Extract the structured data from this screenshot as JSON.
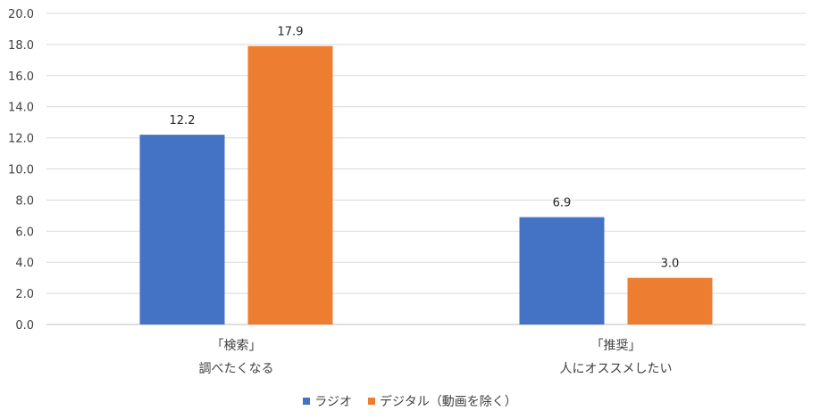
{
  "chart_data": {
    "type": "bar",
    "categories": [
      [
        "「検索」",
        "調べたくなる"
      ],
      [
        "「推奨」",
        "人にオススメしたい"
      ]
    ],
    "series": [
      {
        "name": "ラジオ",
        "values": [
          12.2,
          6.9
        ],
        "color": "#4472C4"
      },
      {
        "name": "デジタル（動画を除く）",
        "values": [
          17.9,
          3.0
        ],
        "color": "#ED7D31"
      }
    ],
    "ylim": [
      0,
      20
    ],
    "yticks": [
      "0.0",
      "2.0",
      "4.0",
      "6.0",
      "8.0",
      "10.0",
      "12.0",
      "14.0",
      "16.0",
      "18.0",
      "20.0"
    ],
    "data_labels": [
      [
        "12.2",
        "6.9"
      ],
      [
        "17.9",
        "3.0"
      ]
    ],
    "grid": true,
    "legend_position": "bottom"
  }
}
